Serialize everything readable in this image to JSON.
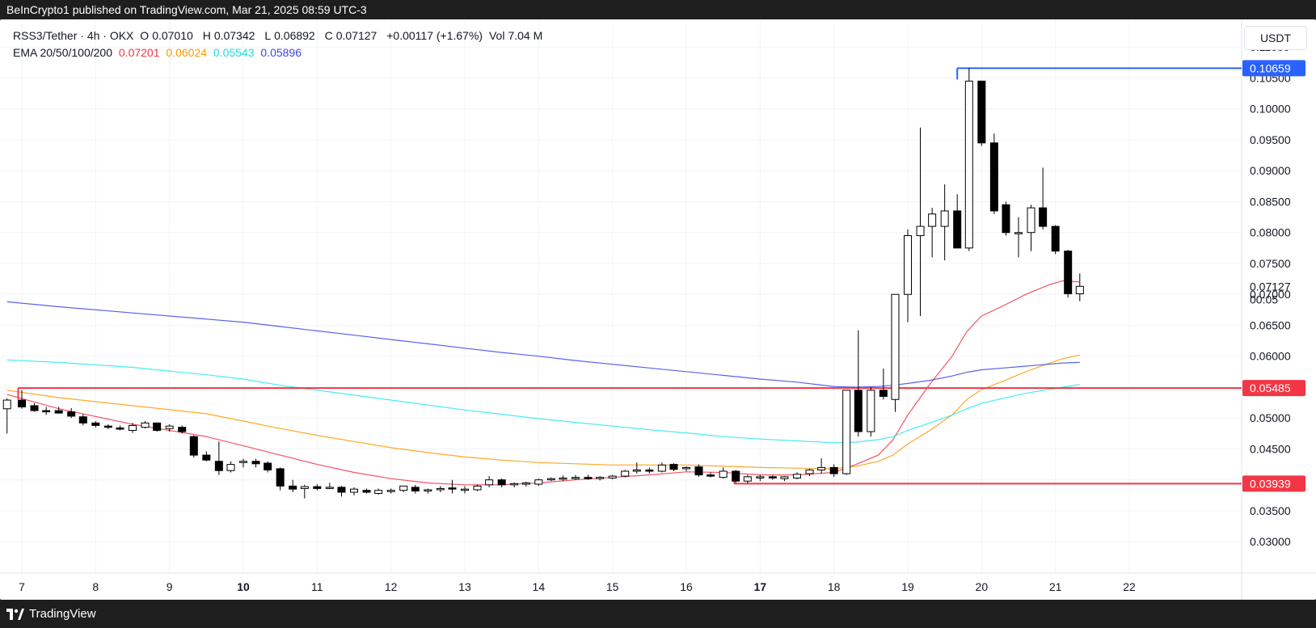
{
  "header": {
    "published_text": "BeInCrypto1 published on TradingView.com, Mar 21, 2025 08:59 UTC-3"
  },
  "footer": {
    "brand": "TradingView"
  },
  "legend": {
    "symbol": "RSS3/Tether · 4h · OKX",
    "open_label": "O",
    "open": "0.07010",
    "high_label": "H",
    "high": "0.07342",
    "low_label": "L",
    "low": "0.06892",
    "close_label": "C",
    "close": "0.07127",
    "change": "+0.00117 (+1.67%)",
    "volume_label": "Vol",
    "volume": "7.04 M",
    "ema_label": "EMA 20/50/100/200",
    "ema20": "0.07201",
    "ema50": "0.06024",
    "ema100": "0.05543",
    "ema200": "0.05896"
  },
  "currency": "USDT",
  "countdown": "00:05",
  "colors": {
    "ema20": "#f23645",
    "ema50": "#ff9800",
    "ema100": "#26e8f0",
    "ema200": "#3d45e6",
    "resistance_top": "#2962ff",
    "level_red": "#f23645",
    "candle_up_fill": "#ffffff",
    "candle_down_fill": "#000000",
    "wick": "#000000"
  },
  "chart_data": {
    "type": "candlestick",
    "x_axis": {
      "ticks": [
        {
          "label": "7",
          "x": 7
        },
        {
          "label": "8",
          "x": 8
        },
        {
          "label": "9",
          "x": 9
        },
        {
          "label": "10",
          "x": 10
        },
        {
          "label": "11",
          "x": 11
        },
        {
          "label": "12",
          "x": 12
        },
        {
          "label": "13",
          "x": 13
        },
        {
          "label": "14",
          "x": 14
        },
        {
          "label": "15",
          "x": 15
        },
        {
          "label": "16",
          "x": 16
        },
        {
          "label": "17",
          "x": 17
        },
        {
          "label": "18",
          "x": 18
        },
        {
          "label": "19",
          "x": 19
        },
        {
          "label": "20",
          "x": 20
        },
        {
          "label": "21",
          "x": 21
        },
        {
          "label": "22",
          "x": 22
        }
      ],
      "bold_ticks": [
        "10",
        "17"
      ]
    },
    "y_axis": {
      "range": [
        0.028,
        0.113
      ],
      "ticks": [
        "0.03000",
        "0.03500",
        "0.04000",
        "0.04500",
        "0.05000",
        "0.05500",
        "0.06000",
        "0.06500",
        "0.07000",
        "0.07500",
        "0.08000",
        "0.08500",
        "0.09000",
        "0.09500",
        "0.10000",
        "0.10500",
        "0.11000"
      ]
    },
    "price_labels": [
      {
        "label": "0.10659",
        "value": 0.10659,
        "style": "blue"
      },
      {
        "label": "0.07127",
        "value": 0.07127,
        "style": "plain"
      },
      {
        "label": "0.05485",
        "value": 0.05485,
        "style": "red"
      },
      {
        "label": "0.03939",
        "value": 0.03939,
        "style": "red"
      }
    ],
    "levels": [
      {
        "value": 0.10659,
        "from": 19.67,
        "color": "resistance_top"
      },
      {
        "value": 0.05485,
        "from": 6.95,
        "color": "level_red"
      },
      {
        "value": 0.03939,
        "from": 16.65,
        "color": "level_red"
      }
    ],
    "candles": [
      [
        6.8,
        0.0515,
        0.0532,
        0.0475,
        0.0529
      ],
      [
        7.0,
        0.0529,
        0.0545,
        0.0515,
        0.0518
      ],
      [
        7.17,
        0.052,
        0.0524,
        0.051,
        0.0512
      ],
      [
        7.33,
        0.0512,
        0.0518,
        0.0505,
        0.051
      ],
      [
        7.5,
        0.0512,
        0.0518,
        0.0507,
        0.0508
      ],
      [
        7.67,
        0.051,
        0.0516,
        0.05,
        0.0503
      ],
      [
        7.83,
        0.0502,
        0.0506,
        0.0488,
        0.0492
      ],
      [
        8.0,
        0.0492,
        0.0495,
        0.0485,
        0.0488
      ],
      [
        8.17,
        0.0487,
        0.049,
        0.0482,
        0.0485
      ],
      [
        8.33,
        0.0484,
        0.0488,
        0.048,
        0.0482
      ],
      [
        8.5,
        0.048,
        0.0492,
        0.0476,
        0.0488
      ],
      [
        8.67,
        0.0485,
        0.0495,
        0.0483,
        0.0492
      ],
      [
        8.83,
        0.0492,
        0.0493,
        0.0478,
        0.048
      ],
      [
        9.0,
        0.0483,
        0.049,
        0.0478,
        0.0487
      ],
      [
        9.17,
        0.0485,
        0.0488,
        0.0475,
        0.0478
      ],
      [
        9.33,
        0.047,
        0.0472,
        0.0436,
        0.044
      ],
      [
        9.5,
        0.044,
        0.0446,
        0.043,
        0.0432
      ],
      [
        9.67,
        0.043,
        0.0462,
        0.0408,
        0.0415
      ],
      [
        9.83,
        0.0415,
        0.043,
        0.0412,
        0.0425
      ],
      [
        10.0,
        0.0428,
        0.0434,
        0.042,
        0.043
      ],
      [
        10.17,
        0.043,
        0.0434,
        0.042,
        0.0426
      ],
      [
        10.33,
        0.0427,
        0.043,
        0.0412,
        0.0416
      ],
      [
        10.5,
        0.0418,
        0.042,
        0.0383,
        0.039
      ],
      [
        10.67,
        0.039,
        0.04,
        0.038,
        0.0385
      ],
      [
        10.83,
        0.0386,
        0.0392,
        0.037,
        0.0389
      ],
      [
        11.0,
        0.0389,
        0.0393,
        0.0383,
        0.0386
      ],
      [
        11.17,
        0.0387,
        0.0395,
        0.0385,
        0.0388
      ],
      [
        11.33,
        0.0388,
        0.039,
        0.0373,
        0.038
      ],
      [
        11.5,
        0.038,
        0.0388,
        0.0375,
        0.0385
      ],
      [
        11.67,
        0.0383,
        0.0386,
        0.0378,
        0.038
      ],
      [
        11.83,
        0.0378,
        0.0386,
        0.0376,
        0.0383
      ],
      [
        12.0,
        0.0381,
        0.0386,
        0.0378,
        0.0383
      ],
      [
        12.17,
        0.0383,
        0.0388,
        0.038,
        0.039
      ],
      [
        12.33,
        0.0388,
        0.0392,
        0.0378,
        0.0382
      ],
      [
        12.5,
        0.0382,
        0.0386,
        0.0378,
        0.0384
      ],
      [
        12.67,
        0.0384,
        0.039,
        0.038,
        0.0386
      ],
      [
        12.83,
        0.0387,
        0.04,
        0.0378,
        0.0386
      ],
      [
        13.0,
        0.0384,
        0.039,
        0.0378,
        0.0385
      ],
      [
        13.17,
        0.0384,
        0.0392,
        0.0382,
        0.039
      ],
      [
        13.33,
        0.0392,
        0.0406,
        0.0388,
        0.04
      ],
      [
        13.5,
        0.04,
        0.0402,
        0.0388,
        0.0392
      ],
      [
        13.67,
        0.0392,
        0.0396,
        0.0388,
        0.0394
      ],
      [
        13.83,
        0.0393,
        0.0397,
        0.0389,
        0.0395
      ],
      [
        14.0,
        0.0393,
        0.0402,
        0.039,
        0.04
      ],
      [
        14.17,
        0.04,
        0.0404,
        0.0398,
        0.0402
      ],
      [
        14.33,
        0.0402,
        0.0407,
        0.0398,
        0.0403
      ],
      [
        14.5,
        0.0403,
        0.0408,
        0.04,
        0.0404
      ],
      [
        14.67,
        0.0404,
        0.0408,
        0.04,
        0.0403
      ],
      [
        14.83,
        0.0402,
        0.0406,
        0.0399,
        0.0404
      ],
      [
        15.0,
        0.0403,
        0.0408,
        0.0401,
        0.0406
      ],
      [
        15.17,
        0.0406,
        0.0416,
        0.0404,
        0.0414
      ],
      [
        15.33,
        0.0414,
        0.0428,
        0.041,
        0.0416
      ],
      [
        15.5,
        0.0416,
        0.042,
        0.041,
        0.0414
      ],
      [
        15.67,
        0.0414,
        0.0428,
        0.0412,
        0.0424
      ],
      [
        15.83,
        0.0425,
        0.0427,
        0.0414,
        0.0417
      ],
      [
        16.0,
        0.0418,
        0.0422,
        0.0414,
        0.042
      ],
      [
        16.17,
        0.0421,
        0.0425,
        0.0405,
        0.0408
      ],
      [
        16.33,
        0.0408,
        0.0412,
        0.0404,
        0.0406
      ],
      [
        16.5,
        0.0404,
        0.042,
        0.0402,
        0.0414
      ],
      [
        16.67,
        0.0414,
        0.0416,
        0.0395,
        0.0398
      ],
      [
        16.83,
        0.0398,
        0.0408,
        0.0394,
        0.0405
      ],
      [
        17.0,
        0.0403,
        0.0408,
        0.0398,
        0.0405
      ],
      [
        17.17,
        0.0405,
        0.0407,
        0.04,
        0.0403
      ],
      [
        17.33,
        0.0402,
        0.0406,
        0.0398,
        0.0405
      ],
      [
        17.5,
        0.0403,
        0.0412,
        0.0401,
        0.0409
      ],
      [
        17.67,
        0.041,
        0.0418,
        0.0406,
        0.0416
      ],
      [
        17.83,
        0.0416,
        0.0435,
        0.041,
        0.042
      ],
      [
        18.0,
        0.042,
        0.0425,
        0.0405,
        0.041
      ],
      [
        18.17,
        0.041,
        0.0545,
        0.0408,
        0.0545
      ],
      [
        18.33,
        0.0545,
        0.0642,
        0.047,
        0.0478
      ],
      [
        18.5,
        0.0478,
        0.055,
        0.047,
        0.0545
      ],
      [
        18.67,
        0.0545,
        0.058,
        0.053,
        0.0535
      ],
      [
        18.83,
        0.053,
        0.07,
        0.051,
        0.07
      ],
      [
        19.0,
        0.07,
        0.0805,
        0.0655,
        0.0795
      ],
      [
        19.17,
        0.0795,
        0.097,
        0.0665,
        0.081
      ],
      [
        19.33,
        0.081,
        0.084,
        0.076,
        0.083
      ],
      [
        19.5,
        0.081,
        0.0878,
        0.0755,
        0.0835
      ],
      [
        19.67,
        0.0835,
        0.0862,
        0.0775,
        0.0775
      ],
      [
        19.83,
        0.0775,
        0.1066,
        0.077,
        0.1045
      ],
      [
        20.0,
        0.1045,
        0.1045,
        0.094,
        0.0945
      ],
      [
        20.17,
        0.0945,
        0.096,
        0.083,
        0.0835
      ],
      [
        20.33,
        0.0845,
        0.085,
        0.0795,
        0.08
      ],
      [
        20.5,
        0.08,
        0.0825,
        0.076,
        0.08
      ],
      [
        20.67,
        0.08,
        0.0845,
        0.077,
        0.084
      ],
      [
        20.83,
        0.084,
        0.0905,
        0.0805,
        0.081
      ],
      [
        21.0,
        0.081,
        0.0812,
        0.0765,
        0.077
      ],
      [
        21.17,
        0.077,
        0.0772,
        0.0695,
        0.0701
      ],
      [
        21.33,
        0.0701,
        0.0734,
        0.0689,
        0.0713
      ]
    ],
    "ema": {
      "ema20": [
        [
          6.8,
          0.0538
        ],
        [
          7.5,
          0.0515
        ],
        [
          8.5,
          0.049
        ],
        [
          9.5,
          0.047
        ],
        [
          10.0,
          0.0455
        ],
        [
          10.5,
          0.044
        ],
        [
          11.0,
          0.0425
        ],
        [
          11.5,
          0.0412
        ],
        [
          12.0,
          0.0402
        ],
        [
          12.5,
          0.0395
        ],
        [
          13.0,
          0.0392
        ],
        [
          13.5,
          0.0392
        ],
        [
          14.0,
          0.0395
        ],
        [
          14.5,
          0.04
        ],
        [
          15.0,
          0.0404
        ],
        [
          15.5,
          0.0408
        ],
        [
          16.0,
          0.0413
        ],
        [
          16.5,
          0.0412
        ],
        [
          17.0,
          0.0408
        ],
        [
          17.5,
          0.0408
        ],
        [
          18.0,
          0.0412
        ],
        [
          18.3,
          0.0425
        ],
        [
          18.6,
          0.044
        ],
        [
          18.8,
          0.0465
        ],
        [
          19.0,
          0.0505
        ],
        [
          19.3,
          0.0555
        ],
        [
          19.6,
          0.06
        ],
        [
          19.8,
          0.064
        ],
        [
          20.0,
          0.0665
        ],
        [
          20.3,
          0.0682
        ],
        [
          20.6,
          0.07
        ],
        [
          20.9,
          0.0715
        ],
        [
          21.1,
          0.0722
        ],
        [
          21.33,
          0.072
        ]
      ],
      "ema50": [
        [
          6.8,
          0.0545
        ],
        [
          7.5,
          0.0533
        ],
        [
          8.5,
          0.052
        ],
        [
          9.5,
          0.0507
        ],
        [
          10.0,
          0.0495
        ],
        [
          10.5,
          0.0483
        ],
        [
          11.0,
          0.0472
        ],
        [
          11.5,
          0.0462
        ],
        [
          12.0,
          0.0452
        ],
        [
          12.5,
          0.0444
        ],
        [
          13.0,
          0.0437
        ],
        [
          13.5,
          0.0432
        ],
        [
          14.0,
          0.0428
        ],
        [
          14.5,
          0.0426
        ],
        [
          15.0,
          0.0424
        ],
        [
          15.5,
          0.0424
        ],
        [
          16.0,
          0.0424
        ],
        [
          16.5,
          0.0422
        ],
        [
          17.0,
          0.042
        ],
        [
          17.5,
          0.0419
        ],
        [
          18.0,
          0.0418
        ],
        [
          18.3,
          0.0422
        ],
        [
          18.6,
          0.043
        ],
        [
          18.8,
          0.044
        ],
        [
          19.0,
          0.0458
        ],
        [
          19.3,
          0.048
        ],
        [
          19.6,
          0.0505
        ],
        [
          19.8,
          0.053
        ],
        [
          20.0,
          0.0546
        ],
        [
          20.3,
          0.056
        ],
        [
          20.6,
          0.0575
        ],
        [
          20.9,
          0.0588
        ],
        [
          21.1,
          0.0596
        ],
        [
          21.33,
          0.0602
        ]
      ],
      "ema100": [
        [
          6.8,
          0.0594
        ],
        [
          7.5,
          0.059
        ],
        [
          8.5,
          0.0582
        ],
        [
          9.5,
          0.057
        ],
        [
          10.0,
          0.0563
        ],
        [
          10.5,
          0.0553
        ],
        [
          11.0,
          0.0545
        ],
        [
          11.5,
          0.0537
        ],
        [
          12.0,
          0.0529
        ],
        [
          12.5,
          0.0521
        ],
        [
          13.0,
          0.0513
        ],
        [
          13.5,
          0.0506
        ],
        [
          14.0,
          0.0499
        ],
        [
          14.5,
          0.0493
        ],
        [
          15.0,
          0.0487
        ],
        [
          15.5,
          0.0481
        ],
        [
          16.0,
          0.0476
        ],
        [
          16.5,
          0.047
        ],
        [
          17.0,
          0.0466
        ],
        [
          17.5,
          0.0463
        ],
        [
          18.0,
          0.046
        ],
        [
          18.3,
          0.0461
        ],
        [
          18.6,
          0.0465
        ],
        [
          18.8,
          0.047
        ],
        [
          19.0,
          0.048
        ],
        [
          19.3,
          0.0492
        ],
        [
          19.6,
          0.0505
        ],
        [
          19.8,
          0.0515
        ],
        [
          20.0,
          0.0524
        ],
        [
          20.3,
          0.0532
        ],
        [
          20.6,
          0.054
        ],
        [
          20.9,
          0.0546
        ],
        [
          21.1,
          0.055
        ],
        [
          21.33,
          0.0554
        ]
      ],
      "ema200": [
        [
          6.8,
          0.0688
        ],
        [
          7.5,
          0.068
        ],
        [
          8.5,
          0.067
        ],
        [
          9.5,
          0.066
        ],
        [
          10.0,
          0.0655
        ],
        [
          10.5,
          0.0648
        ],
        [
          11.0,
          0.0641
        ],
        [
          11.5,
          0.0634
        ],
        [
          12.0,
          0.0627
        ],
        [
          12.5,
          0.062
        ],
        [
          13.0,
          0.0613
        ],
        [
          13.5,
          0.0606
        ],
        [
          14.0,
          0.06
        ],
        [
          14.5,
          0.0593
        ],
        [
          15.0,
          0.0587
        ],
        [
          15.5,
          0.0581
        ],
        [
          16.0,
          0.0575
        ],
        [
          16.5,
          0.0569
        ],
        [
          17.0,
          0.0563
        ],
        [
          17.5,
          0.0558
        ],
        [
          18.0,
          0.0551
        ],
        [
          18.3,
          0.055
        ],
        [
          18.6,
          0.0551
        ],
        [
          18.8,
          0.0553
        ],
        [
          19.0,
          0.0556
        ],
        [
          19.3,
          0.0561
        ],
        [
          19.6,
          0.0568
        ],
        [
          19.8,
          0.0574
        ],
        [
          20.0,
          0.0578
        ],
        [
          20.3,
          0.0581
        ],
        [
          20.6,
          0.0584
        ],
        [
          20.9,
          0.0587
        ],
        [
          21.1,
          0.0589
        ],
        [
          21.33,
          0.059
        ]
      ]
    }
  }
}
